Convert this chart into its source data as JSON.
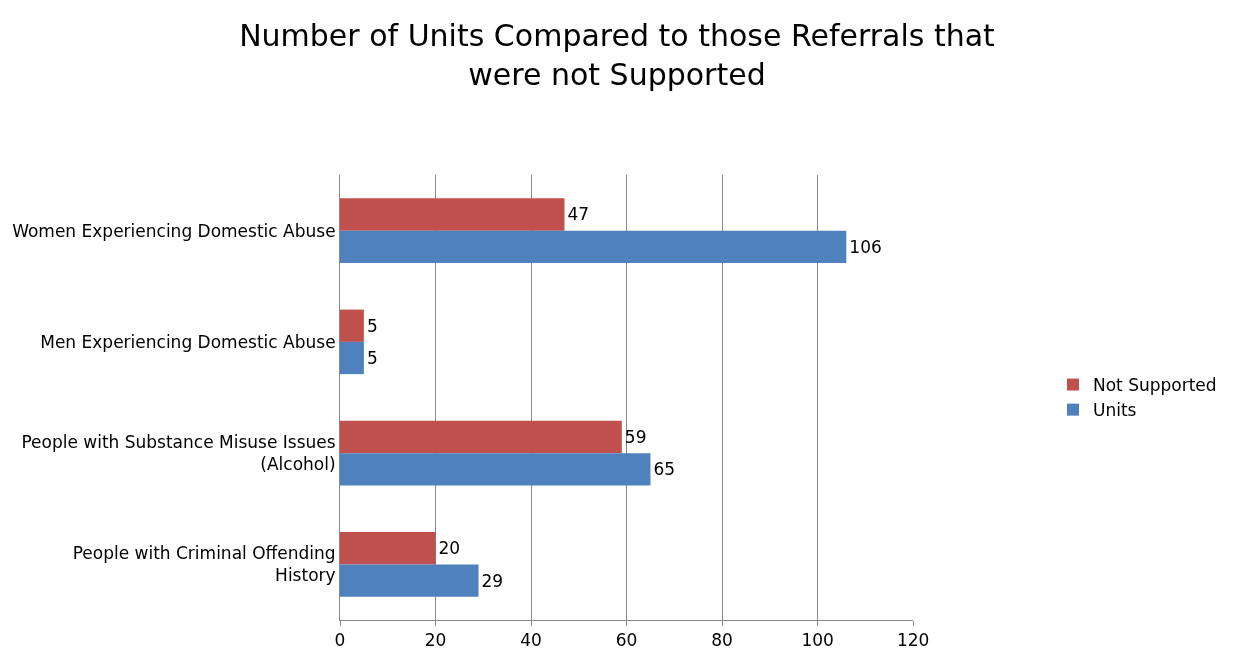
{
  "chart_data": {
    "type": "bar",
    "orientation": "horizontal",
    "title": "Number of Units Compared to those Referrals that were not Supported",
    "categories": [
      "Women Experiencing Domestic Abuse",
      "Men Experiencing Domestic Abuse",
      "People with Substance Misuse Issues (Alcohol)",
      "People with Criminal Offending History"
    ],
    "series": [
      {
        "name": "Not Supported",
        "color": "#c0504d",
        "values": [
          47,
          5,
          59,
          20
        ]
      },
      {
        "name": "Units",
        "color": "#4f81bd",
        "values": [
          106,
          5,
          65,
          29
        ]
      }
    ],
    "xlim": [
      0,
      120
    ],
    "xticks": [
      0,
      20,
      40,
      60,
      80,
      100,
      120
    ],
    "grid": "x",
    "legend": "right",
    "data_labels": true
  }
}
